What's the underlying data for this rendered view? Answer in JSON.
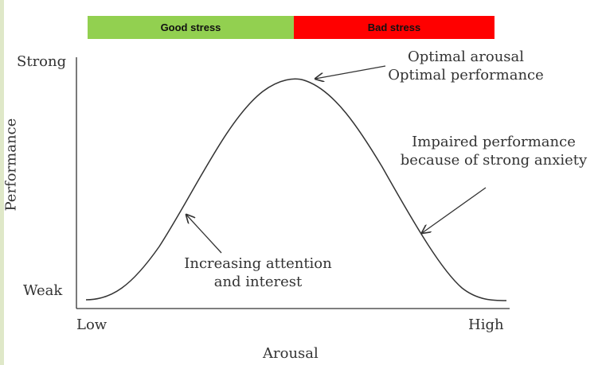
{
  "header": {
    "good_label": "Good stress",
    "good_color": "#92d050",
    "bad_label": "Bad stress",
    "bad_color": "#ff0000"
  },
  "axes": {
    "y_title": "Performance",
    "y_top": "Strong",
    "y_bottom": "Weak",
    "x_title": "Arousal",
    "x_left": "Low",
    "x_right": "High"
  },
  "annotations": {
    "peak_line1": "Optimal arousal",
    "peak_line2": "Optimal performance",
    "right_line1": "Impaired performance",
    "right_line2": "because of strong anxiety",
    "left_line1": "Increasing attention",
    "left_line2": "and interest"
  },
  "colors": {
    "curve": "#333333",
    "axis": "#333333"
  }
}
